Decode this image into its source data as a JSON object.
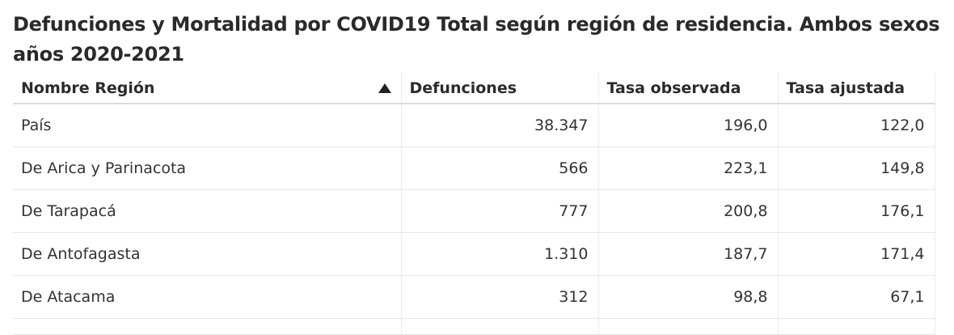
{
  "title_line1": "Defunciones y Mortalidad por COVID19 Total según región de residencia. Ambos sexos",
  "title_line2": "años 2020-2021",
  "columns": [
    "Nombre Región",
    "Defunciones",
    "Tasa observada",
    "Tasa ajustada"
  ],
  "sort": {
    "column": "Nombre Región",
    "direction": "ascending",
    "icon": "sort-ascending-icon"
  },
  "rows": [
    {
      "region": "País",
      "defunciones": "38.347",
      "tasa_observada": "196,0",
      "tasa_ajustada": "122,0"
    },
    {
      "region": "De Arica y Parinacota",
      "defunciones": "566",
      "tasa_observada": "223,1",
      "tasa_ajustada": "149,8"
    },
    {
      "region": "De Tarapacá",
      "defunciones": "777",
      "tasa_observada": "200,8",
      "tasa_ajustada": "176,1"
    },
    {
      "region": "De Antofagasta",
      "defunciones": "1.310",
      "tasa_observada": "187,7",
      "tasa_ajustada": "171,4"
    },
    {
      "region": "De Atacama",
      "defunciones": "312",
      "tasa_observada": "98,8",
      "tasa_ajustada": "67,1"
    }
  ],
  "chart_data": {
    "type": "table",
    "title": "Defunciones y Mortalidad por COVID19 Total según región de residencia. Ambos sexos años 2020-2021",
    "columns": [
      "Nombre Región",
      "Defunciones",
      "Tasa observada",
      "Tasa ajustada"
    ],
    "rows": [
      [
        "País",
        38347,
        196.0,
        122.0
      ],
      [
        "De Arica y Parinacota",
        566,
        223.1,
        149.8
      ],
      [
        "De Tarapacá",
        777,
        200.8,
        176.1
      ],
      [
        "De Antofagasta",
        1310,
        187.7,
        171.4
      ],
      [
        "De Atacama",
        312,
        98.8,
        67.1
      ]
    ]
  }
}
